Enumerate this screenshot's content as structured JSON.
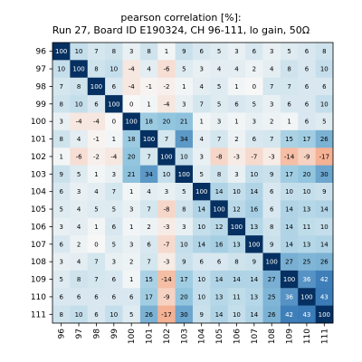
{
  "chart_data": {
    "type": "heatmap",
    "title_line1": "pearson correlation [%]:",
    "title_line2": "Run 27, Board ID E190324, CH 96-111, lo gain, 50Ω",
    "x_labels": [
      "96",
      "97",
      "98",
      "99",
      "100",
      "101",
      "102",
      "103",
      "104",
      "105",
      "106",
      "107",
      "108",
      "109",
      "110",
      "111"
    ],
    "y_labels": [
      "96",
      "97",
      "98",
      "99",
      "100",
      "101",
      "102",
      "103",
      "104",
      "105",
      "106",
      "107",
      "108",
      "109",
      "110",
      "111"
    ],
    "color_range": [
      -100,
      100
    ],
    "colormap": "diverging red-white-blue",
    "values": [
      [
        100,
        10,
        7,
        8,
        3,
        8,
        1,
        9,
        6,
        5,
        3,
        6,
        3,
        5,
        6,
        8
      ],
      [
        10,
        100,
        8,
        10,
        -4,
        4,
        -6,
        5,
        3,
        4,
        4,
        2,
        4,
        8,
        6,
        10
      ],
      [
        7,
        8,
        100,
        6,
        -4,
        -1,
        -2,
        1,
        4,
        5,
        1,
        0,
        7,
        7,
        6,
        6
      ],
      [
        8,
        10,
        6,
        100,
        0,
        1,
        -4,
        3,
        7,
        5,
        6,
        5,
        3,
        6,
        6,
        10
      ],
      [
        3,
        -4,
        -4,
        0,
        100,
        18,
        20,
        21,
        1,
        3,
        1,
        3,
        2,
        1,
        6,
        5
      ],
      [
        8,
        4,
        -1,
        1,
        18,
        100,
        7,
        34,
        4,
        7,
        2,
        6,
        7,
        15,
        17,
        26
      ],
      [
        1,
        -6,
        -2,
        -4,
        20,
        7,
        100,
        10,
        3,
        -8,
        -3,
        -7,
        -3,
        -14,
        -9,
        -17
      ],
      [
        9,
        5,
        1,
        3,
        21,
        34,
        10,
        100,
        5,
        8,
        3,
        10,
        9,
        17,
        20,
        30
      ],
      [
        6,
        3,
        4,
        7,
        1,
        4,
        3,
        5,
        100,
        14,
        10,
        14,
        6,
        10,
        10,
        9
      ],
      [
        5,
        4,
        5,
        5,
        3,
        7,
        -8,
        8,
        14,
        100,
        12,
        16,
        6,
        14,
        13,
        14
      ],
      [
        3,
        4,
        1,
        6,
        1,
        2,
        -3,
        3,
        10,
        12,
        100,
        13,
        8,
        14,
        11,
        10
      ],
      [
        6,
        2,
        0,
        5,
        3,
        6,
        -7,
        10,
        14,
        16,
        13,
        100,
        9,
        14,
        13,
        14
      ],
      [
        3,
        4,
        7,
        3,
        2,
        7,
        -3,
        9,
        6,
        6,
        8,
        9,
        100,
        27,
        25,
        26
      ],
      [
        5,
        8,
        7,
        6,
        1,
        15,
        -14,
        17,
        10,
        14,
        14,
        14,
        27,
        100,
        36,
        42
      ],
      [
        6,
        6,
        6,
        6,
        6,
        17,
        -9,
        20,
        10,
        13,
        11,
        13,
        25,
        36,
        100,
        43
      ],
      [
        8,
        10,
        6,
        10,
        5,
        26,
        -17,
        30,
        9,
        14,
        10,
        14,
        26,
        42,
        43,
        100
      ]
    ]
  }
}
